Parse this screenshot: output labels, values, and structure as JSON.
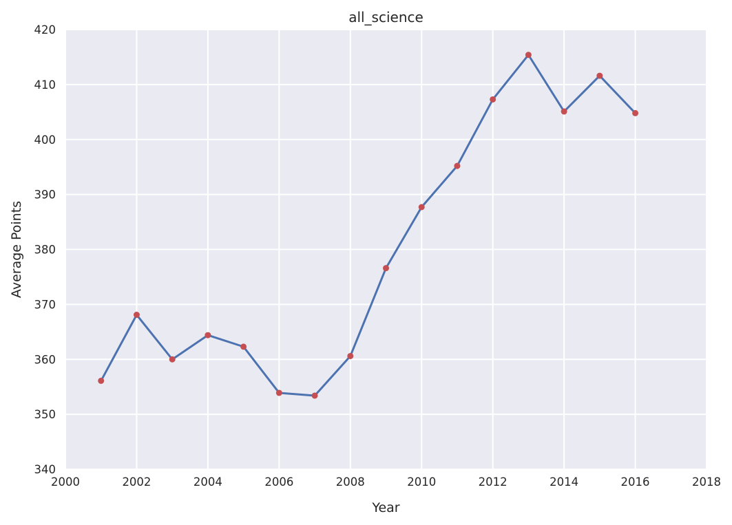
{
  "chart_data": {
    "type": "line",
    "title": "all_science",
    "xlabel": "Year",
    "ylabel": "Average Points",
    "xlim": [
      2000,
      2018
    ],
    "ylim": [
      340,
      420
    ],
    "xticks": [
      "2000",
      "2002",
      "2004",
      "2006",
      "2008",
      "2010",
      "2012",
      "2014",
      "2016",
      "2018"
    ],
    "yticks": [
      "340",
      "350",
      "360",
      "370",
      "380",
      "390",
      "400",
      "410",
      "420"
    ],
    "grid": true,
    "legend": false,
    "colors": {
      "background": "#eaeaf2",
      "grid": "#ffffff",
      "line": "#4c72b0",
      "marker": "#c44e52"
    },
    "series": [
      {
        "x": [
          2001,
          2002,
          2003,
          2004,
          2005,
          2006,
          2007,
          2008,
          2009,
          2010,
          2011,
          2012,
          2013,
          2014,
          2015,
          2016
        ],
        "y": [
          356.1,
          368.1,
          360.0,
          364.4,
          362.3,
          353.9,
          353.4,
          360.6,
          376.6,
          387.7,
          395.2,
          407.3,
          415.4,
          405.1,
          411.6,
          404.8
        ]
      }
    ]
  }
}
